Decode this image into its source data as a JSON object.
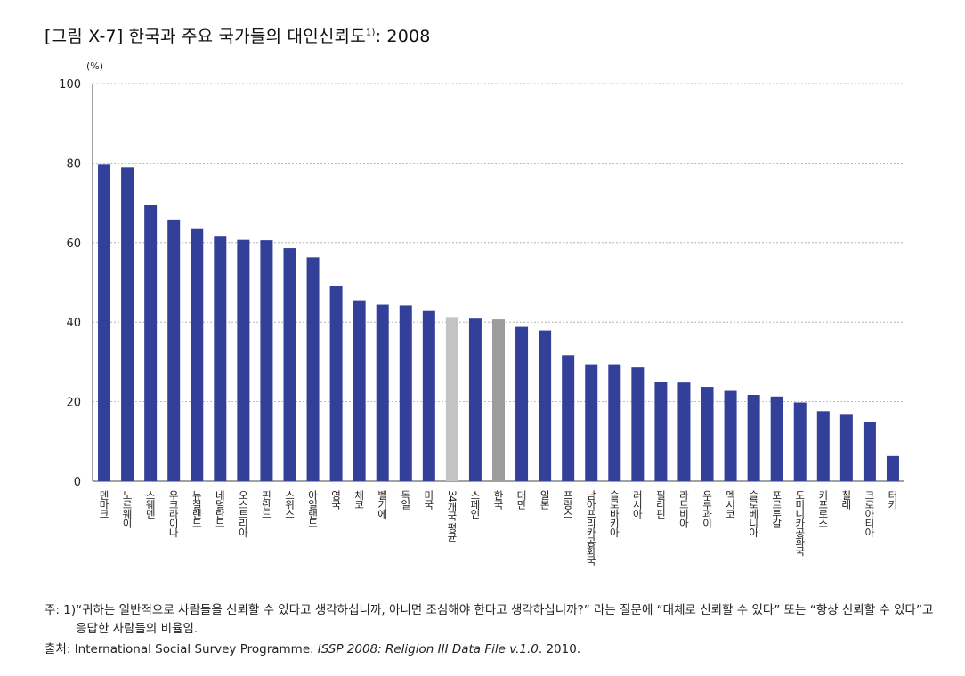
{
  "figure": {
    "title": "[그림 X-7] 한국과 주요 국가들의 대인신뢰도",
    "title_sup": "1)",
    "title_suffix": ": 2008"
  },
  "colors": {
    "bar": "#33409a",
    "average": "#c3c3c3",
    "korea": "#9c9c9c",
    "grid": "#a8a8a8",
    "axis": "#444444"
  },
  "chart_data": {
    "type": "bar",
    "ylabel_unit": "(%)",
    "ylim": [
      0,
      100
    ],
    "yticks": [
      0,
      20,
      40,
      60,
      80,
      100
    ],
    "grid": true,
    "categories": [
      "덴마크",
      "노르웨이",
      "스웨덴",
      "우크라이나",
      "뉴질랜드",
      "네덜란드",
      "오스트리아",
      "핀란드",
      "스위스",
      "아일랜드",
      "영국",
      "체코",
      "벨기에",
      "독일",
      "미국",
      "34개국 평균",
      "스페인",
      "한국",
      "대만",
      "일본",
      "프랑스",
      "남아프리카공화국",
      "슬로바키아",
      "러시아",
      "필리핀",
      "라트비아",
      "우루과이",
      "멕시코",
      "슬로베니아",
      "포르투갈",
      "도미니카공화국",
      "키프로스",
      "칠레",
      "크로아티아",
      "터키"
    ],
    "values": [
      79.8,
      78.9,
      69.5,
      65.8,
      63.6,
      61.7,
      60.7,
      60.6,
      58.6,
      56.3,
      49.2,
      45.5,
      44.4,
      44.2,
      42.8,
      41.3,
      40.9,
      40.7,
      38.8,
      37.9,
      31.7,
      29.4,
      29.4,
      28.6,
      25.0,
      24.8,
      23.7,
      22.7,
      21.7,
      21.3,
      19.8,
      17.6,
      16.7,
      14.9,
      6.3
    ],
    "highlight": {
      "34개국 평균": "average",
      "한국": "korea"
    }
  },
  "notes": {
    "note_label": "주: 1) ",
    "note_text": "“귀하는 일반적으로 사람들을 신뢰할 수 있다고 생각하십니까, 아니면 조심해야 한다고 생각하십니까?” 라는 질문에 “대체로 신뢰할 수 있다” 또는 “항상 신뢰할 수 있다”고 응답한 사람들의 비율임.",
    "source_label": "출처: ",
    "source_org": "International Social Survey Programme. ",
    "source_title": "ISSP 2008: Religion III Data File v.1.0",
    "source_year": ". 2010."
  }
}
